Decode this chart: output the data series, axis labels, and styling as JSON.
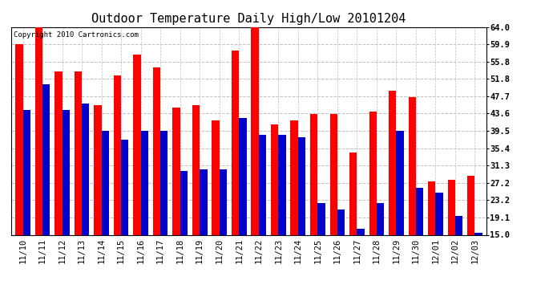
{
  "title": "Outdoor Temperature Daily High/Low 20101204",
  "copyright": "Copyright 2010 Cartronics.com",
  "dates": [
    "11/10",
    "11/11",
    "11/12",
    "11/13",
    "11/14",
    "11/15",
    "11/16",
    "11/17",
    "11/18",
    "11/19",
    "11/20",
    "11/21",
    "11/22",
    "11/23",
    "11/24",
    "11/25",
    "11/26",
    "11/27",
    "11/28",
    "11/29",
    "11/30",
    "12/01",
    "12/02",
    "12/03"
  ],
  "highs": [
    60.0,
    64.0,
    53.5,
    53.5,
    45.5,
    52.5,
    57.5,
    54.5,
    45.0,
    45.5,
    42.0,
    58.5,
    64.5,
    41.0,
    42.0,
    43.5,
    43.5,
    34.5,
    44.0,
    49.0,
    47.5,
    27.5,
    28.0,
    29.0
  ],
  "lows": [
    44.5,
    50.5,
    44.5,
    46.0,
    39.5,
    37.5,
    39.5,
    39.5,
    30.0,
    30.5,
    30.5,
    42.5,
    38.5,
    38.5,
    38.0,
    22.5,
    21.0,
    16.5,
    22.5,
    39.5,
    26.0,
    25.0,
    19.5,
    15.5
  ],
  "high_color": "#ff0000",
  "low_color": "#0000cc",
  "background_color": "#ffffff",
  "yticks": [
    15.0,
    19.1,
    23.2,
    27.2,
    31.3,
    35.4,
    39.5,
    43.6,
    47.7,
    51.8,
    55.8,
    59.9,
    64.0
  ],
  "ymin": 15.0,
  "ymax": 64.0,
  "grid_color": "#c0c0c0",
  "title_fontsize": 11,
  "tick_fontsize": 7.5,
  "copyright_fontsize": 6.5
}
